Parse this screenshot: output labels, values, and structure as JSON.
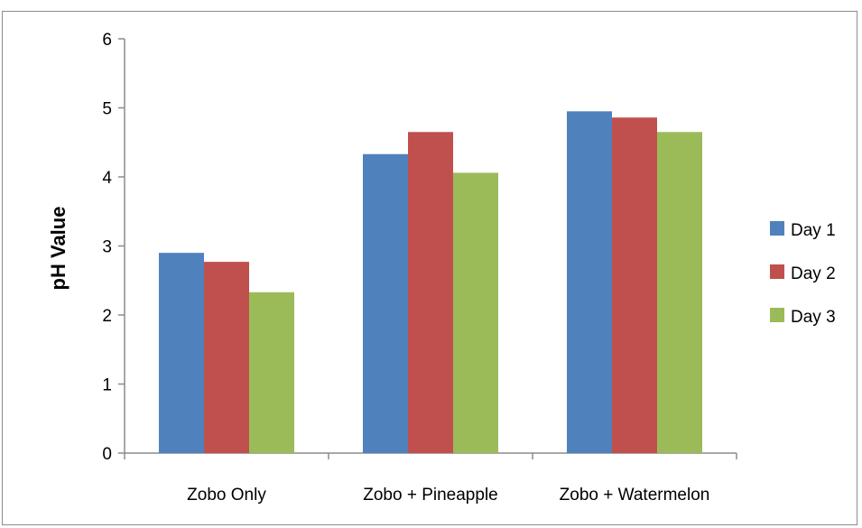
{
  "chart_data": {
    "type": "bar",
    "title": "",
    "xlabel": "",
    "ylabel": "pH Value",
    "ylim": [
      0,
      6
    ],
    "yticks": [
      "0",
      "1",
      "2",
      "3",
      "4",
      "5",
      "6"
    ],
    "grid": false,
    "legend_position": "right",
    "categories": [
      "Zobo Only",
      "Zobo + Pineapple",
      "Zobo + Watermelon"
    ],
    "series": [
      {
        "name": "Day 1",
        "color": "#4f81bd",
        "values": [
          2.9,
          4.33,
          4.95
        ]
      },
      {
        "name": "Day 2",
        "color": "#c0504d",
        "values": [
          2.77,
          4.65,
          4.86
        ]
      },
      {
        "name": "Day 3",
        "color": "#9bbb59",
        "values": [
          2.33,
          4.06,
          4.65
        ]
      }
    ]
  }
}
